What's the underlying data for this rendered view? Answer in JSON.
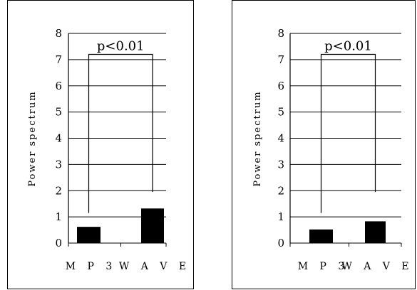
{
  "chart_data": [
    {
      "type": "bar",
      "ylabel": "Power spectrum",
      "ylim": [
        0,
        8
      ],
      "yticks": [
        "0",
        "1",
        "2",
        "3",
        "4",
        "5",
        "6",
        "7",
        "8"
      ],
      "categories": [
        "MP3",
        "WAVE"
      ],
      "category_labels": [
        "M P 3",
        "W A V E"
      ],
      "values": [
        0.62,
        1.32
      ],
      "significance": "p<0.01",
      "grid": true
    },
    {
      "type": "bar",
      "ylabel": "Power spectrum",
      "ylim": [
        0,
        8
      ],
      "yticks": [
        "0",
        "1",
        "2",
        "3",
        "4",
        "5",
        "6",
        "7",
        "8"
      ],
      "categories": [
        "MP3",
        "WAVE"
      ],
      "category_labels": [
        "M P 3",
        "W A V E"
      ],
      "values": [
        0.52,
        0.83
      ],
      "significance": "p<0.01",
      "grid": true
    }
  ]
}
